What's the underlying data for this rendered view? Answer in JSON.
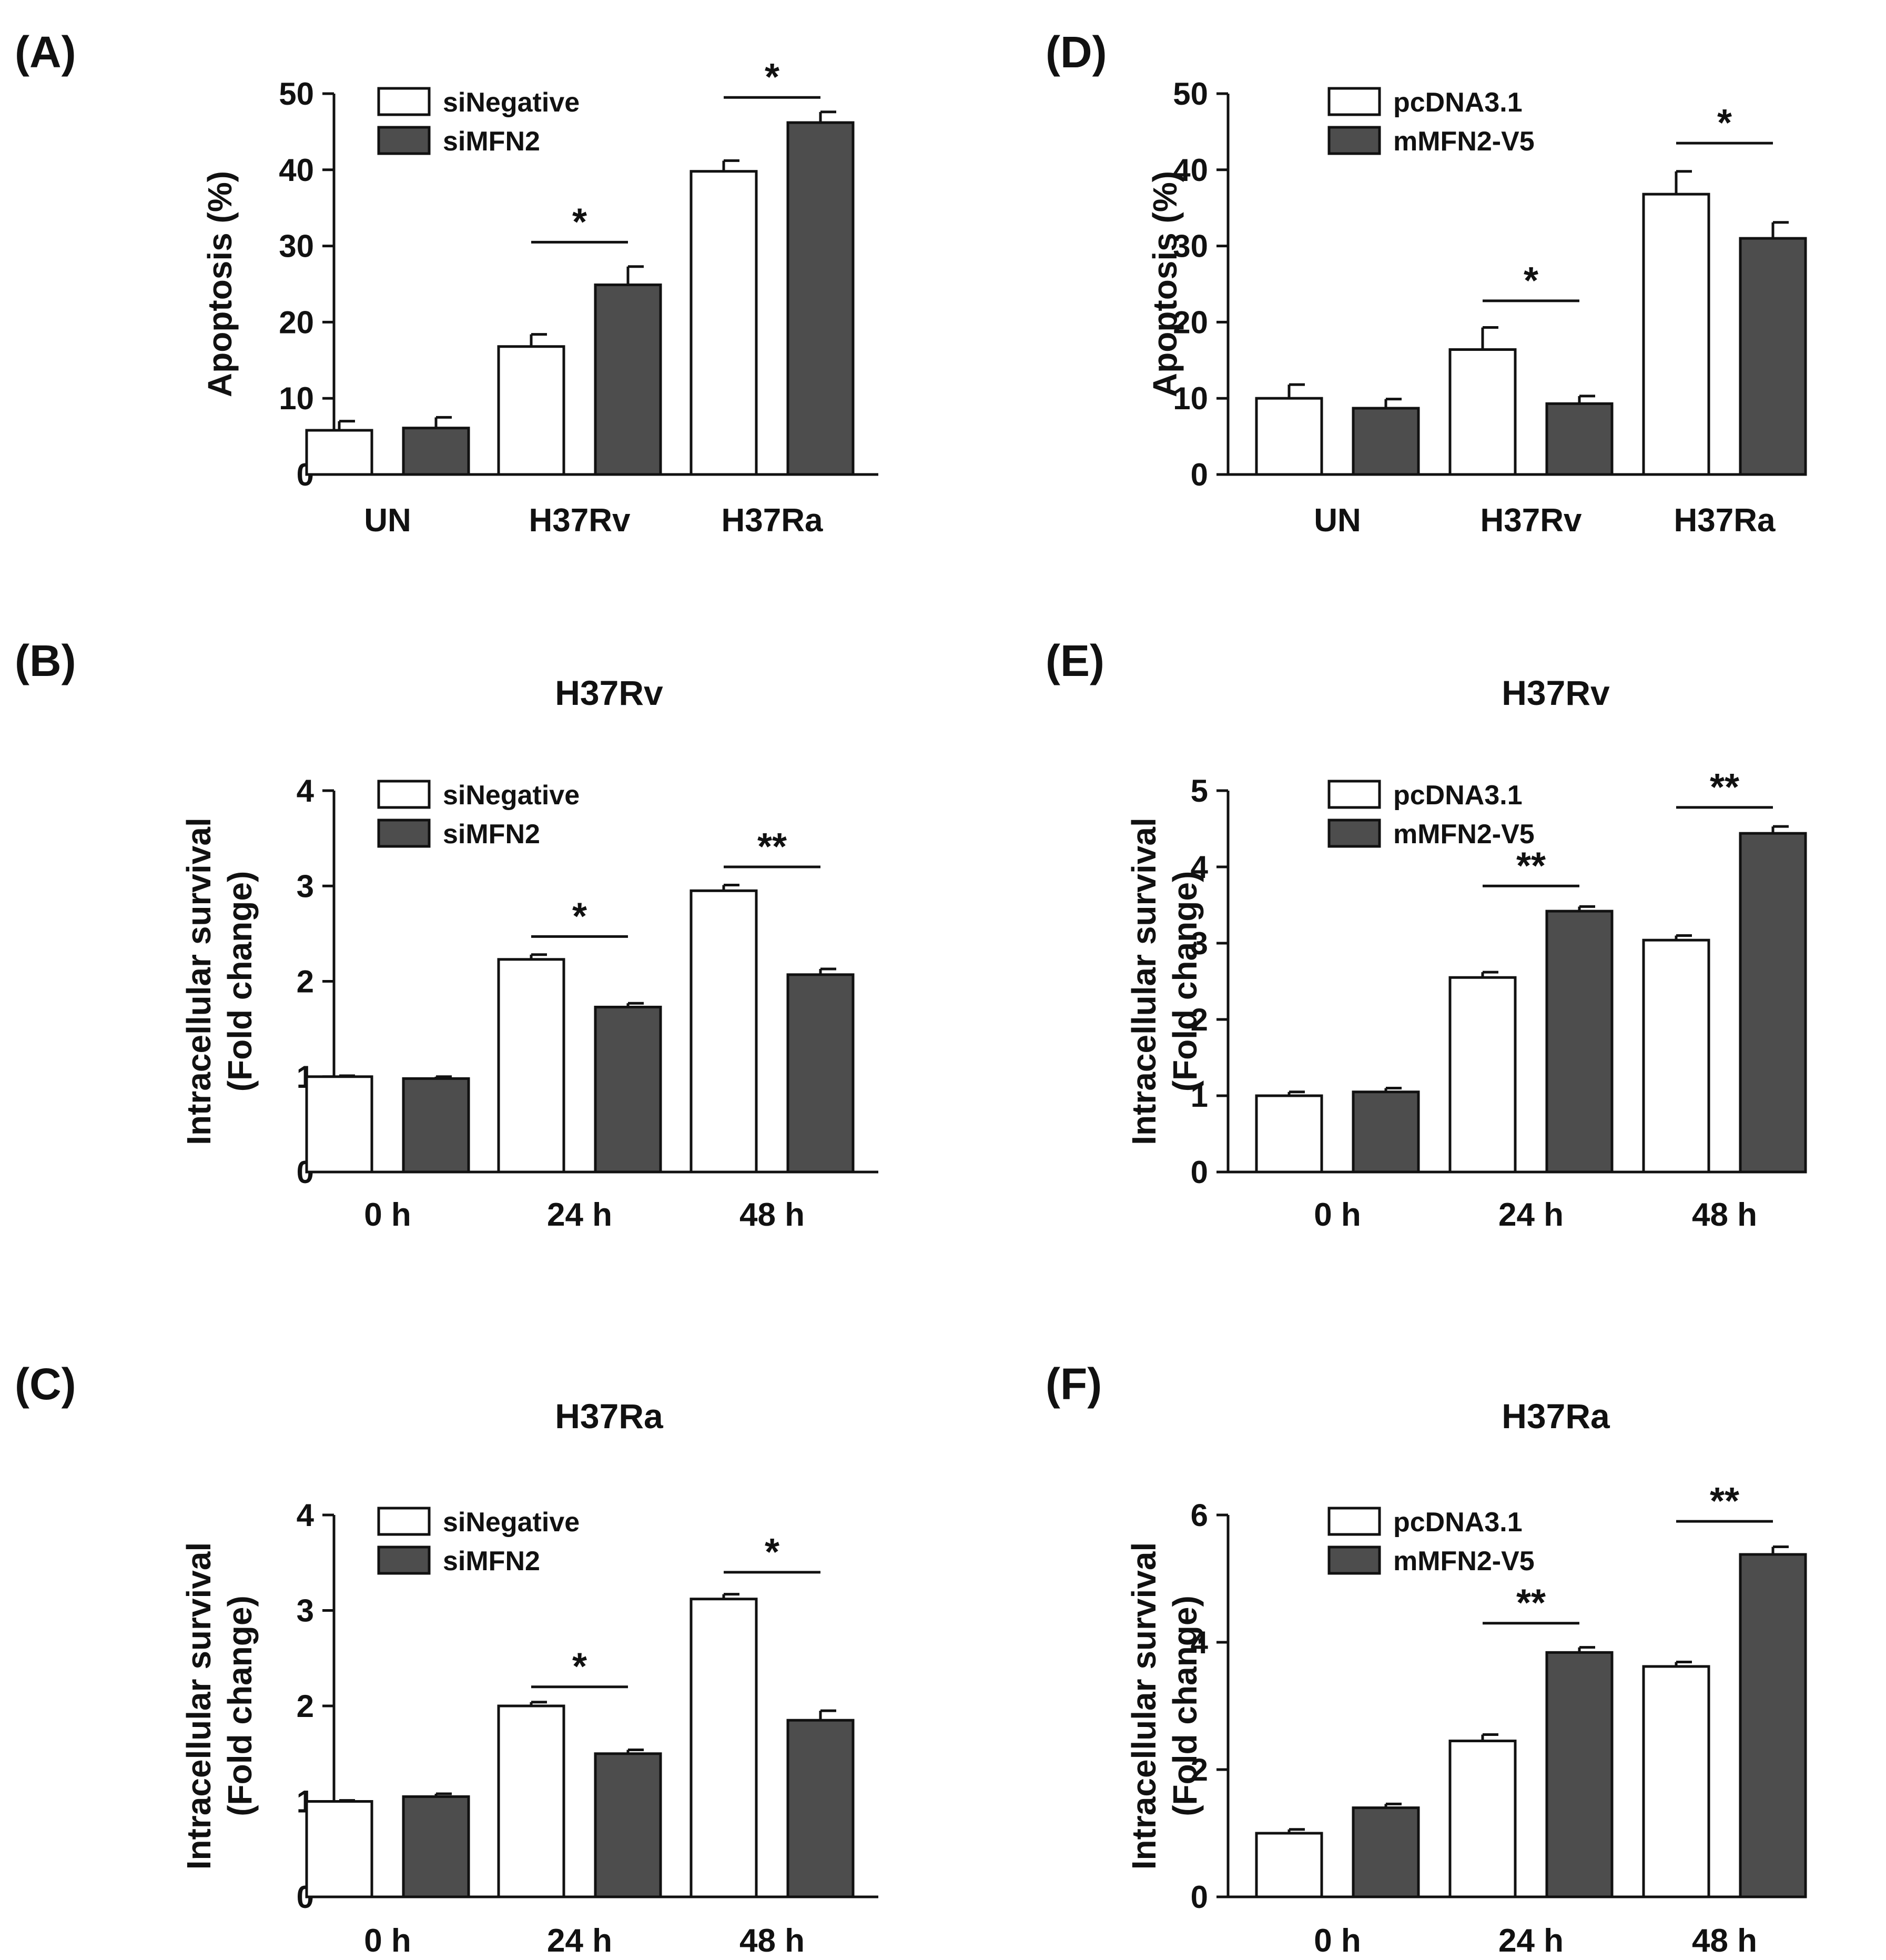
{
  "colors": {
    "white_bar": "#ffffff",
    "dark_bar": "#4d4d4d",
    "ink": "#111111"
  },
  "chart_data": [
    {
      "panel": "(A)",
      "type": "bar",
      "title": "",
      "ylabel": [
        "Apoptosis (%)"
      ],
      "categories": [
        "UN",
        "H37Rv",
        "H37Ra"
      ],
      "ylim": [
        0,
        50
      ],
      "yticks": [
        0,
        10,
        20,
        30,
        40,
        50
      ],
      "series": [
        {
          "name": "siNegative",
          "color": "#ffffff",
          "values": [
            5.8,
            16.8,
            39.8
          ],
          "errors": [
            1.2,
            1.6,
            1.4
          ]
        },
        {
          "name": "siMFN2",
          "color": "#4d4d4d",
          "values": [
            6.1,
            24.9,
            46.2
          ],
          "errors": [
            1.4,
            2.4,
            1.4
          ]
        }
      ],
      "significance": [
        {
          "category": 1,
          "label": "*",
          "y": 30.5
        },
        {
          "category": 2,
          "label": "*",
          "y": 49.5
        }
      ]
    },
    {
      "panel": "(B)",
      "type": "bar",
      "title": "H37Rv",
      "ylabel": [
        "Intracellular survival",
        "(Fold change)"
      ],
      "categories": [
        "0 h",
        "24 h",
        "48 h"
      ],
      "ylim": [
        0,
        4
      ],
      "yticks": [
        0,
        1,
        2,
        3,
        4
      ],
      "series": [
        {
          "name": "siNegative",
          "color": "#ffffff",
          "values": [
            1.0,
            2.23,
            2.95
          ],
          "errors": [
            0.01,
            0.05,
            0.06
          ]
        },
        {
          "name": "siMFN2",
          "color": "#4d4d4d",
          "values": [
            0.98,
            1.73,
            2.07
          ],
          "errors": [
            0.02,
            0.04,
            0.06
          ]
        }
      ],
      "significance": [
        {
          "category": 1,
          "label": "*",
          "y": 2.47
        },
        {
          "category": 2,
          "label": "**",
          "y": 3.2
        }
      ]
    },
    {
      "panel": "(C)",
      "type": "bar",
      "title": "H37Ra",
      "ylabel": [
        "Intracellular survival",
        "(Fold change)"
      ],
      "categories": [
        "0 h",
        "24 h",
        "48 h"
      ],
      "ylim": [
        0,
        4
      ],
      "yticks": [
        0,
        1,
        2,
        3,
        4
      ],
      "series": [
        {
          "name": "siNegative",
          "color": "#ffffff",
          "values": [
            1.0,
            2.0,
            3.12
          ],
          "errors": [
            0.01,
            0.04,
            0.05
          ]
        },
        {
          "name": "siMFN2",
          "color": "#4d4d4d",
          "values": [
            1.05,
            1.5,
            1.85
          ],
          "errors": [
            0.03,
            0.04,
            0.1
          ]
        }
      ],
      "significance": [
        {
          "category": 1,
          "label": "*",
          "y": 2.2
        },
        {
          "category": 2,
          "label": "*",
          "y": 3.4
        }
      ]
    },
    {
      "panel": "(D)",
      "type": "bar",
      "title": "",
      "ylabel": [
        "Apoptosis (%)"
      ],
      "categories": [
        "UN",
        "H37Rv",
        "H37Ra"
      ],
      "ylim": [
        0,
        50
      ],
      "yticks": [
        0,
        10,
        20,
        30,
        40,
        50
      ],
      "series": [
        {
          "name": "pcDNA3.1",
          "color": "#ffffff",
          "values": [
            10.0,
            16.4,
            36.8
          ],
          "errors": [
            1.8,
            2.9,
            3.0
          ]
        },
        {
          "name": "mMFN2-V5",
          "color": "#4d4d4d",
          "values": [
            8.7,
            9.3,
            31.0
          ],
          "errors": [
            1.2,
            1.0,
            2.1
          ]
        }
      ],
      "significance": [
        {
          "category": 1,
          "label": "*",
          "y": 22.8
        },
        {
          "category": 2,
          "label": "*",
          "y": 43.5
        }
      ]
    },
    {
      "panel": "(E)",
      "type": "bar",
      "title": "H37Rv",
      "ylabel": [
        "Intracellular survival",
        "(Fold change)"
      ],
      "categories": [
        "0 h",
        "24 h",
        "48 h"
      ],
      "ylim": [
        0,
        5
      ],
      "yticks": [
        0,
        1,
        2,
        3,
        4,
        5
      ],
      "series": [
        {
          "name": "pcDNA3.1",
          "color": "#ffffff",
          "values": [
            1.0,
            2.55,
            3.04
          ],
          "errors": [
            0.05,
            0.07,
            0.06
          ]
        },
        {
          "name": "mMFN2-V5",
          "color": "#4d4d4d",
          "values": [
            1.05,
            3.42,
            4.44
          ],
          "errors": [
            0.05,
            0.06,
            0.09
          ]
        }
      ],
      "significance": [
        {
          "category": 1,
          "label": "**",
          "y": 3.75
        },
        {
          "category": 2,
          "label": "**",
          "y": 4.78
        }
      ]
    },
    {
      "panel": "(F)",
      "type": "bar",
      "title": "H37Ra",
      "ylabel": [
        "Intracellular survival",
        "(Fold change)"
      ],
      "categories": [
        "0 h",
        "24 h",
        "48 h"
      ],
      "ylim": [
        0,
        6
      ],
      "yticks": [
        0,
        2,
        4,
        6
      ],
      "series": [
        {
          "name": "pcDNA3.1",
          "color": "#ffffff",
          "values": [
            1.0,
            2.45,
            3.62
          ],
          "errors": [
            0.06,
            0.1,
            0.07
          ]
        },
        {
          "name": "mMFN2-V5",
          "color": "#4d4d4d",
          "values": [
            1.4,
            3.84,
            5.38
          ],
          "errors": [
            0.06,
            0.08,
            0.12
          ]
        }
      ],
      "significance": [
        {
          "category": 1,
          "label": "**",
          "y": 4.3
        },
        {
          "category": 2,
          "label": "**",
          "y": 5.9
        }
      ]
    }
  ]
}
